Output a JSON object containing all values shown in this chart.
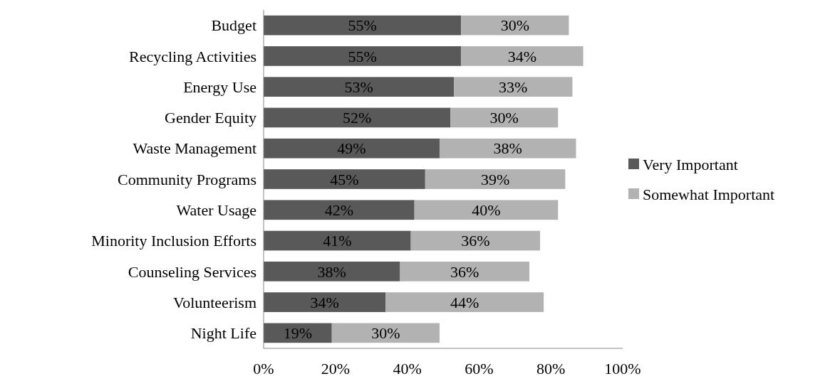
{
  "chart_data": {
    "type": "bar",
    "orientation": "horizontal",
    "stacked": true,
    "categories": [
      "Budget",
      "Recycling Activities",
      "Energy Use",
      "Gender Equity",
      "Waste Management",
      "Community Programs",
      "Water Usage",
      "Minority Inclusion Efforts",
      "Counseling Services",
      "Volunteerism",
      "Night Life"
    ],
    "series": [
      {
        "name": "Very Important",
        "color": "#595959",
        "values": [
          55,
          55,
          53,
          52,
          49,
          45,
          42,
          41,
          38,
          34,
          19
        ],
        "value_labels": [
          "55%",
          "55%",
          "53%",
          "52%",
          "49%",
          "45%",
          "42%",
          "41%",
          "38%",
          "34%",
          "19%"
        ]
      },
      {
        "name": "Somewhat Important",
        "color": "#b2b2b2",
        "values": [
          30,
          34,
          33,
          30,
          38,
          39,
          40,
          36,
          36,
          44,
          30
        ],
        "value_labels": [
          "30%",
          "34%",
          "33%",
          "30%",
          "38%",
          "39%",
          "40%",
          "36%",
          "36%",
          "44%",
          "30%"
        ]
      }
    ],
    "xlim": [
      0,
      100
    ],
    "xticks": [
      {
        "value": 0,
        "label": "0%"
      },
      {
        "value": 20,
        "label": "20%"
      },
      {
        "value": 40,
        "label": "40%"
      },
      {
        "value": 60,
        "label": "60%"
      },
      {
        "value": 80,
        "label": "80%"
      },
      {
        "value": 100,
        "label": "100%"
      }
    ],
    "legend": "right"
  }
}
